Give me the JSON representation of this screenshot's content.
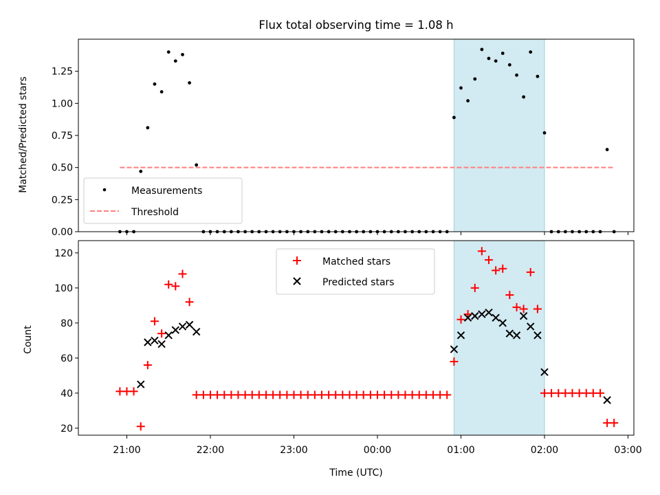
{
  "chart_data": [
    {
      "type": "scatter",
      "title": "Flux total observing time = 1.08 h",
      "xlabel": "",
      "ylabel": "Matched/Predicted stars",
      "ylim": [
        0,
        1.5
      ],
      "xlim": [
        -0.58,
        6.07
      ],
      "yticks": [
        0,
        0.25,
        0.5,
        0.75,
        1.0,
        1.25
      ],
      "ytick_labels": [
        "0.00",
        "0.25",
        "0.50",
        "0.75",
        "1.00",
        "1.25"
      ],
      "legend_position": "lower-left",
      "highlight_span": [
        3.917,
        5.0
      ],
      "highlight_color": "#add8e6",
      "series": [
        {
          "name": "Measurements",
          "color": "#000000",
          "marker": "dot",
          "points": [
            [
              -0.083,
              0.0
            ],
            [
              0.0,
              0.0
            ],
            [
              0.083,
              0.0
            ],
            [
              0.167,
              0.47
            ],
            [
              0.25,
              0.81
            ],
            [
              0.333,
              1.15
            ],
            [
              0.417,
              1.09
            ],
            [
              0.5,
              1.4
            ],
            [
              0.583,
              1.33
            ],
            [
              0.667,
              1.38
            ],
            [
              0.75,
              1.16
            ],
            [
              0.833,
              0.52
            ],
            [
              0.917,
              0.0
            ],
            [
              1.0,
              0.0
            ],
            [
              1.083,
              0.0
            ],
            [
              1.167,
              0.0
            ],
            [
              1.25,
              0.0
            ],
            [
              1.333,
              0.0
            ],
            [
              1.417,
              0.0
            ],
            [
              1.5,
              0.0
            ],
            [
              1.583,
              0.0
            ],
            [
              1.667,
              0.0
            ],
            [
              1.75,
              0.0
            ],
            [
              1.833,
              0.0
            ],
            [
              1.917,
              0.0
            ],
            [
              2.0,
              0.0
            ],
            [
              2.083,
              0.0
            ],
            [
              2.167,
              0.0
            ],
            [
              2.25,
              0.0
            ],
            [
              2.333,
              0.0
            ],
            [
              2.417,
              0.0
            ],
            [
              2.5,
              0.0
            ],
            [
              2.583,
              0.0
            ],
            [
              2.667,
              0.0
            ],
            [
              2.75,
              0.0
            ],
            [
              2.833,
              0.0
            ],
            [
              2.917,
              0.0
            ],
            [
              3.0,
              0.0
            ],
            [
              3.083,
              0.0
            ],
            [
              3.167,
              0.0
            ],
            [
              3.25,
              0.0
            ],
            [
              3.333,
              0.0
            ],
            [
              3.417,
              0.0
            ],
            [
              3.5,
              0.0
            ],
            [
              3.583,
              0.0
            ],
            [
              3.667,
              0.0
            ],
            [
              3.75,
              0.0
            ],
            [
              3.833,
              0.0
            ],
            [
              3.917,
              0.89
            ],
            [
              4.0,
              1.12
            ],
            [
              4.083,
              1.02
            ],
            [
              4.167,
              1.19
            ],
            [
              4.25,
              1.42
            ],
            [
              4.333,
              1.35
            ],
            [
              4.417,
              1.33
            ],
            [
              4.5,
              1.39
            ],
            [
              4.583,
              1.3
            ],
            [
              4.667,
              1.22
            ],
            [
              4.75,
              1.05
            ],
            [
              4.833,
              1.4
            ],
            [
              4.917,
              1.21
            ],
            [
              5.0,
              0.77
            ],
            [
              5.083,
              0.0
            ],
            [
              5.167,
              0.0
            ],
            [
              5.25,
              0.0
            ],
            [
              5.333,
              0.0
            ],
            [
              5.417,
              0.0
            ],
            [
              5.5,
              0.0
            ],
            [
              5.583,
              0.0
            ],
            [
              5.667,
              0.0
            ],
            [
              5.75,
              0.64
            ],
            [
              5.833,
              0.0
            ]
          ]
        },
        {
          "name": "Threshold",
          "color": "#ff7f7f",
          "style": "dashed-line",
          "points": [
            [
              -0.083,
              0.5
            ],
            [
              5.833,
              0.5
            ]
          ]
        }
      ]
    },
    {
      "type": "scatter",
      "title": "",
      "xlabel": "Time (UTC)",
      "ylabel": "Count",
      "ylim": [
        16,
        127
      ],
      "xlim": [
        -0.58,
        6.07
      ],
      "yticks": [
        20,
        40,
        60,
        80,
        100,
        120
      ],
      "ytick_labels": [
        "20",
        "40",
        "60",
        "80",
        "100",
        "120"
      ],
      "xticks": [
        0,
        1,
        2,
        3,
        4,
        5,
        6
      ],
      "xtick_labels": [
        "21:00",
        "22:00",
        "23:00",
        "00:00",
        "01:00",
        "02:00",
        "03:00"
      ],
      "legend_position": "upper-center",
      "highlight_span": [
        3.917,
        5.0
      ],
      "highlight_color": "#add8e6",
      "series": [
        {
          "name": "Matched stars",
          "color": "#ff0000",
          "marker": "plus",
          "points": [
            [
              -0.083,
              41
            ],
            [
              0.0,
              41
            ],
            [
              0.083,
              41
            ],
            [
              0.167,
              21
            ],
            [
              0.25,
              56
            ],
            [
              0.333,
              81
            ],
            [
              0.417,
              74
            ],
            [
              0.5,
              102
            ],
            [
              0.583,
              101
            ],
            [
              0.667,
              108
            ],
            [
              0.75,
              92
            ],
            [
              0.833,
              39
            ],
            [
              0.917,
              39
            ],
            [
              1.0,
              39
            ],
            [
              1.083,
              39
            ],
            [
              1.167,
              39
            ],
            [
              1.25,
              39
            ],
            [
              1.333,
              39
            ],
            [
              1.417,
              39
            ],
            [
              1.5,
              39
            ],
            [
              1.583,
              39
            ],
            [
              1.667,
              39
            ],
            [
              1.75,
              39
            ],
            [
              1.833,
              39
            ],
            [
              1.917,
              39
            ],
            [
              2.0,
              39
            ],
            [
              2.083,
              39
            ],
            [
              2.167,
              39
            ],
            [
              2.25,
              39
            ],
            [
              2.333,
              39
            ],
            [
              2.417,
              39
            ],
            [
              2.5,
              39
            ],
            [
              2.583,
              39
            ],
            [
              2.667,
              39
            ],
            [
              2.75,
              39
            ],
            [
              2.833,
              39
            ],
            [
              2.917,
              39
            ],
            [
              3.0,
              39
            ],
            [
              3.083,
              39
            ],
            [
              3.167,
              39
            ],
            [
              3.25,
              39
            ],
            [
              3.333,
              39
            ],
            [
              3.417,
              39
            ],
            [
              3.5,
              39
            ],
            [
              3.583,
              39
            ],
            [
              3.667,
              39
            ],
            [
              3.75,
              39
            ],
            [
              3.833,
              39
            ],
            [
              3.917,
              58
            ],
            [
              4.0,
              82
            ],
            [
              4.083,
              85
            ],
            [
              4.167,
              100
            ],
            [
              4.25,
              121
            ],
            [
              4.333,
              116
            ],
            [
              4.417,
              110
            ],
            [
              4.5,
              111
            ],
            [
              4.583,
              96
            ],
            [
              4.667,
              89
            ],
            [
              4.75,
              88
            ],
            [
              4.833,
              109
            ],
            [
              4.917,
              88
            ],
            [
              5.0,
              40
            ],
            [
              5.083,
              40
            ],
            [
              5.167,
              40
            ],
            [
              5.25,
              40
            ],
            [
              5.333,
              40
            ],
            [
              5.417,
              40
            ],
            [
              5.5,
              40
            ],
            [
              5.583,
              40
            ],
            [
              5.667,
              40
            ],
            [
              5.75,
              23
            ],
            [
              5.833,
              23
            ]
          ]
        },
        {
          "name": "Predicted stars",
          "color": "#000000",
          "marker": "x",
          "points": [
            [
              0.167,
              45
            ],
            [
              0.25,
              69
            ],
            [
              0.333,
              70
            ],
            [
              0.417,
              68
            ],
            [
              0.5,
              73
            ],
            [
              0.583,
              76
            ],
            [
              0.667,
              78
            ],
            [
              0.75,
              79
            ],
            [
              0.833,
              75
            ],
            [
              3.917,
              65
            ],
            [
              4.0,
              73
            ],
            [
              4.083,
              83
            ],
            [
              4.167,
              84
            ],
            [
              4.25,
              85
            ],
            [
              4.333,
              86
            ],
            [
              4.417,
              83
            ],
            [
              4.5,
              80
            ],
            [
              4.583,
              74
            ],
            [
              4.667,
              73
            ],
            [
              4.75,
              84
            ],
            [
              4.833,
              78
            ],
            [
              4.917,
              73
            ],
            [
              5.0,
              52
            ],
            [
              5.75,
              36
            ]
          ]
        }
      ]
    }
  ]
}
